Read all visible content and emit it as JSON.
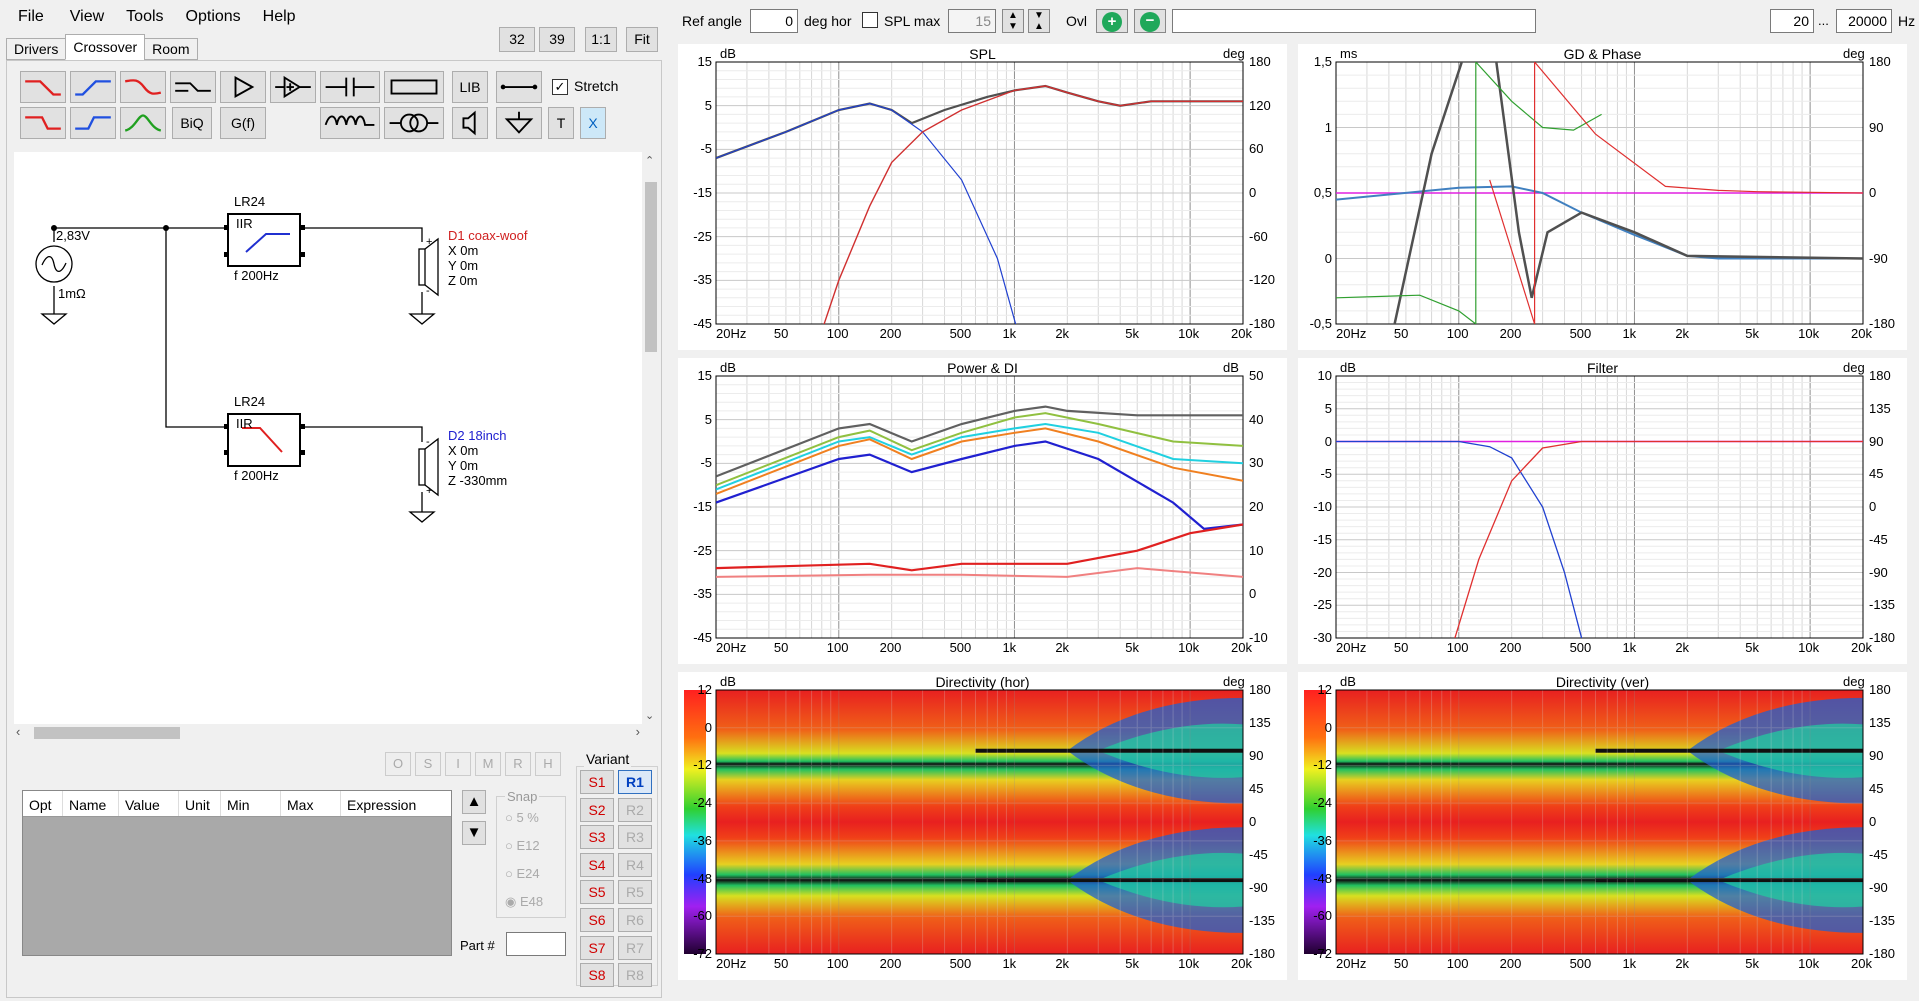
{
  "menu": [
    "File",
    "View",
    "Tools",
    "Options",
    "Help"
  ],
  "tabs": [
    "Drivers",
    "Crossover",
    "Room"
  ],
  "zoom_buttons": [
    "32",
    "39",
    "1:1",
    "Fit"
  ],
  "toolbar": {
    "lib": "LIB",
    "biq": "BiQ",
    "gf": "G(f)",
    "t": "T",
    "x": "X",
    "stretch_label": "Stretch",
    "stretch_checked": true
  },
  "schematic": {
    "source_voltage": "2,83V",
    "source_impedance": "1mΩ",
    "filters": [
      {
        "type": "LR24",
        "kind": "IIR",
        "freq": "f  200Hz"
      },
      {
        "type": "LR24",
        "kind": "IIR",
        "freq": "f  200Hz"
      }
    ],
    "drivers": [
      {
        "name": "D1 coax-woof",
        "x": "X 0m",
        "y": "Y 0m",
        "z": "Z 0m",
        "color": "#d02020"
      },
      {
        "name": "D2 18inch",
        "x": "X 0m",
        "y": "Y 0m",
        "z": "Z -330mm",
        "color": "#2020d0"
      }
    ]
  },
  "opt_buttons": [
    "O",
    "S",
    "I",
    "M",
    "R",
    "H"
  ],
  "table": {
    "columns": [
      "Opt",
      "Name",
      "Value",
      "Unit",
      "Min",
      "Max",
      "Expression"
    ]
  },
  "snap": {
    "label": "Snap",
    "options": [
      "5 %",
      "E12",
      "E24",
      "E48"
    ],
    "selected": "E48"
  },
  "part": {
    "label": "Part #",
    "value": ""
  },
  "variant": {
    "label": "Variant",
    "s": [
      "S1",
      "S2",
      "S3",
      "S4",
      "S5",
      "S6",
      "S7",
      "S8"
    ],
    "r": [
      "R1",
      "R2",
      "R3",
      "R4",
      "R5",
      "R6",
      "R7",
      "R8"
    ],
    "active": "R1"
  },
  "topbar": {
    "ref_angle_label": "Ref angle",
    "ref_angle_value": "0",
    "deg_hor": "deg hor",
    "spl_max_label": "SPL max",
    "spl_max_value": "15",
    "ovl": "Ovl",
    "freq_from": "20",
    "ellipsis": "...",
    "freq_to": "20000",
    "hz": "Hz"
  },
  "x_ticks": [
    "20Hz",
    "50",
    "100",
    "200",
    "500",
    "1k",
    "2k",
    "5k",
    "10k",
    "20k"
  ],
  "charts": {
    "spl": {
      "title": "SPL",
      "left_unit": "dB",
      "right_unit": "deg",
      "left_ticks": [
        "15",
        "5",
        "-5",
        "-15",
        "-25",
        "-35",
        "-45"
      ],
      "right_ticks": [
        "180",
        "120",
        "60",
        "0",
        "-60",
        "-120",
        "-180"
      ]
    },
    "gd": {
      "title": "GD & Phase",
      "left_unit": "ms",
      "right_unit": "deg",
      "left_ticks": [
        "1,5",
        "1",
        "0,5",
        "0",
        "-0,5"
      ],
      "right_ticks": [
        "180",
        "90",
        "0",
        "-90",
        "-180"
      ]
    },
    "power": {
      "title": "Power & DI",
      "left_unit": "dB",
      "right_unit": "dB",
      "left_ticks": [
        "15",
        "5",
        "-5",
        "-15",
        "-25",
        "-35",
        "-45"
      ],
      "right_ticks": [
        "50",
        "40",
        "30",
        "20",
        "10",
        "0",
        "-10"
      ]
    },
    "filter": {
      "title": "Filter",
      "left_unit": "dB",
      "right_unit": "deg",
      "left_ticks": [
        "10",
        "5",
        "0",
        "-5",
        "-10",
        "-15",
        "-20",
        "-25",
        "-30"
      ],
      "right_ticks": [
        "180",
        "135",
        "90",
        "45",
        "0",
        "-45",
        "-90",
        "-135",
        "-180"
      ]
    },
    "dir_hor": {
      "title": "Directivity (hor)",
      "left_unit": "dB",
      "right_unit": "deg",
      "left_ticks": [
        "12",
        "0",
        "-12",
        "-24",
        "-36",
        "-48",
        "-60",
        "-72"
      ],
      "right_ticks": [
        "180",
        "135",
        "90",
        "45",
        "0",
        "-45",
        "-90",
        "-135",
        "-180"
      ]
    },
    "dir_ver": {
      "title": "Directivity (ver)",
      "left_unit": "dB",
      "right_unit": "deg",
      "left_ticks": [
        "12",
        "0",
        "-12",
        "-24",
        "-36",
        "-48",
        "-60",
        "-72"
      ],
      "right_ticks": [
        "180",
        "135",
        "90",
        "45",
        "0",
        "-45",
        "-90",
        "-135",
        "-180"
      ]
    }
  },
  "colors": {
    "red": "#d02020",
    "blue": "#2030d0",
    "grey": "#606060",
    "accent_green": "#1fa85a"
  }
}
